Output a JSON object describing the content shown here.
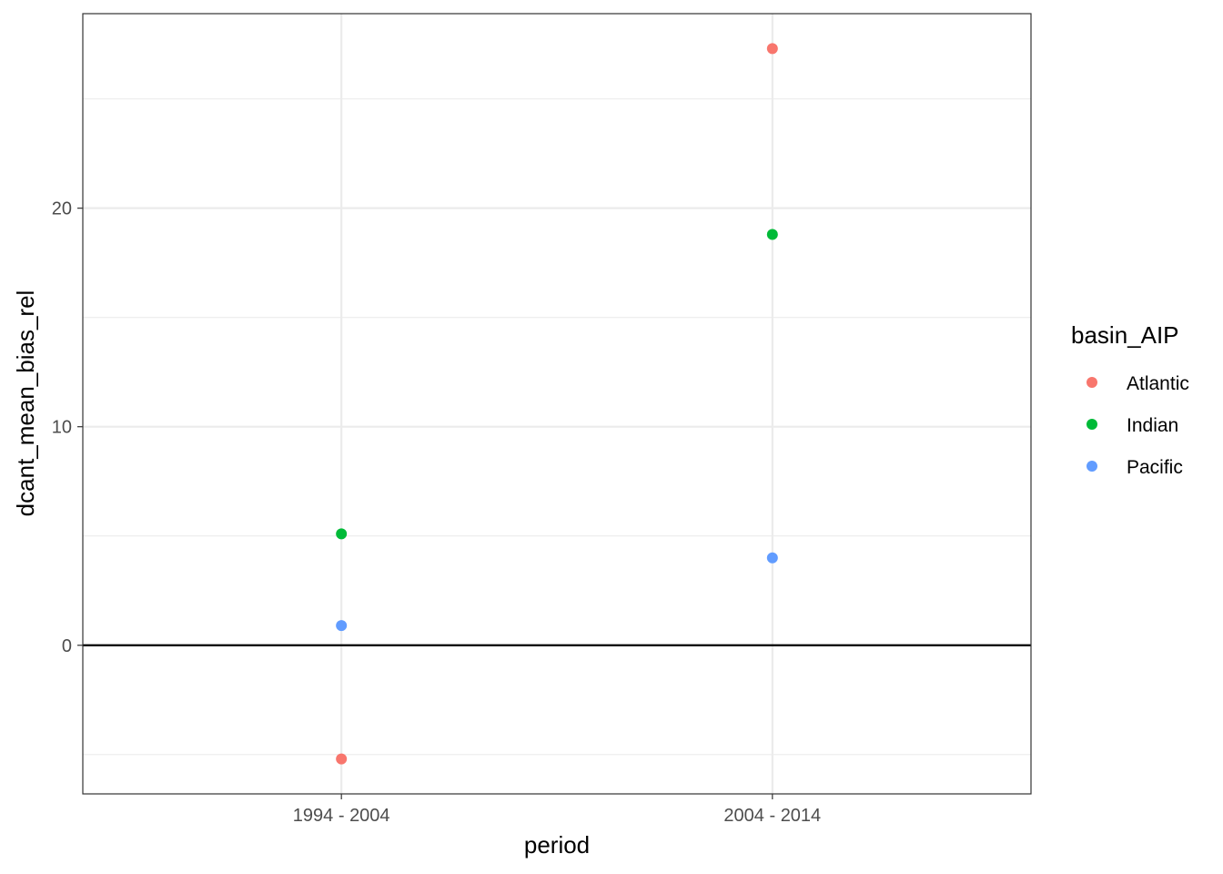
{
  "chart_data": {
    "type": "scatter",
    "title": "",
    "xlabel": "period",
    "ylabel": "dcant_mean_bias_rel",
    "categories": [
      "1994 - 2004",
      "2004 - 2014"
    ],
    "ylim": [
      -6.8,
      28.9
    ],
    "y_ticks": [
      0,
      10,
      20
    ],
    "y_tick_labels": [
      "0",
      "10",
      "20"
    ],
    "grid": true,
    "reference_line_y": 0,
    "legend": {
      "title": "basin_AIP",
      "position": "right"
    },
    "series": [
      {
        "name": "Atlantic",
        "color": "#F8766D",
        "values": [
          -5.2,
          27.3
        ]
      },
      {
        "name": "Indian",
        "color": "#00BA38",
        "values": [
          5.1,
          18.8
        ]
      },
      {
        "name": "Pacific",
        "color": "#619CFF",
        "values": [
          0.9,
          4.0
        ]
      }
    ]
  }
}
